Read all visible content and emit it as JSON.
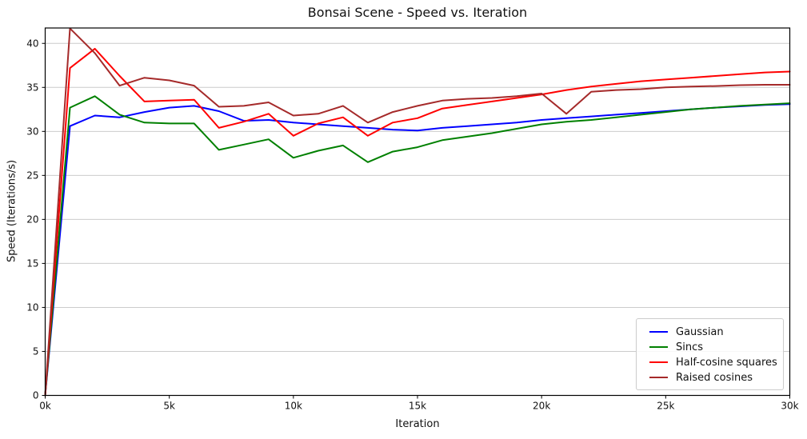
{
  "chart_data": {
    "type": "line",
    "title": "Bonsai Scene - Speed vs. Iteration",
    "xlabel": "Iteration",
    "ylabel": "Speed (Iterations/s)",
    "xlim": [
      0,
      30000
    ],
    "ylim": [
      0,
      41.75
    ],
    "grid": "horizontal",
    "grid_color": "#cccccc",
    "axis_color": "#000000",
    "legend_position": "lower right",
    "x": [
      0,
      1000,
      2000,
      3000,
      4000,
      5000,
      6000,
      7000,
      8000,
      9000,
      10000,
      11000,
      12000,
      13000,
      14000,
      15000,
      16000,
      17000,
      18000,
      19000,
      20000,
      21000,
      22000,
      23000,
      24000,
      25000,
      26000,
      27000,
      28000,
      29000,
      30000
    ],
    "xticks": {
      "values": [
        0,
        5000,
        10000,
        15000,
        20000,
        25000,
        30000
      ],
      "labels": [
        "0k",
        "5k",
        "10k",
        "15k",
        "20k",
        "25k",
        "30k"
      ]
    },
    "yticks": {
      "values": [
        0,
        5,
        10,
        15,
        20,
        25,
        30,
        35,
        40
      ],
      "labels": [
        "0",
        "5",
        "10",
        "15",
        "20",
        "25",
        "30",
        "35",
        "40"
      ]
    },
    "series": [
      {
        "name": "Gaussian",
        "color": "#0000ff",
        "values": [
          0,
          30.6,
          31.8,
          31.6,
          32.2,
          32.7,
          32.9,
          32.3,
          31.2,
          31.3,
          31.0,
          30.8,
          30.6,
          30.4,
          30.2,
          30.1,
          30.4,
          30.6,
          30.8,
          31.0,
          31.3,
          31.5,
          31.7,
          31.9,
          32.1,
          32.3,
          32.5,
          32.7,
          32.85,
          33.0,
          33.1
        ]
      },
      {
        "name": "Sincs",
        "color": "#008000",
        "values": [
          0,
          32.7,
          34.0,
          31.9,
          31.0,
          30.9,
          30.9,
          27.9,
          28.5,
          29.1,
          27.0,
          27.8,
          28.4,
          26.5,
          27.7,
          28.2,
          29.0,
          29.4,
          29.8,
          30.3,
          30.8,
          31.1,
          31.3,
          31.6,
          31.9,
          32.2,
          32.5,
          32.7,
          32.9,
          33.05,
          33.2
        ]
      },
      {
        "name": "Half-cosine squares",
        "color": "#ff0000",
        "values": [
          0,
          37.2,
          39.4,
          36.3,
          33.4,
          33.5,
          33.6,
          30.4,
          31.1,
          32.0,
          29.5,
          30.9,
          31.6,
          29.5,
          31.0,
          31.5,
          32.6,
          33.0,
          33.4,
          33.8,
          34.2,
          34.7,
          35.1,
          35.4,
          35.7,
          35.9,
          36.1,
          36.3,
          36.5,
          36.7,
          36.8
        ]
      },
      {
        "name": "Raised cosines",
        "color": "#a52a2a",
        "values": [
          0,
          41.7,
          38.9,
          35.2,
          36.1,
          35.8,
          35.2,
          32.8,
          32.9,
          33.3,
          31.8,
          32.0,
          32.9,
          31.0,
          32.2,
          32.9,
          33.5,
          33.7,
          33.8,
          34.0,
          34.3,
          32.0,
          34.5,
          34.7,
          34.8,
          35.0,
          35.1,
          35.15,
          35.25,
          35.3,
          35.3
        ]
      }
    ]
  }
}
